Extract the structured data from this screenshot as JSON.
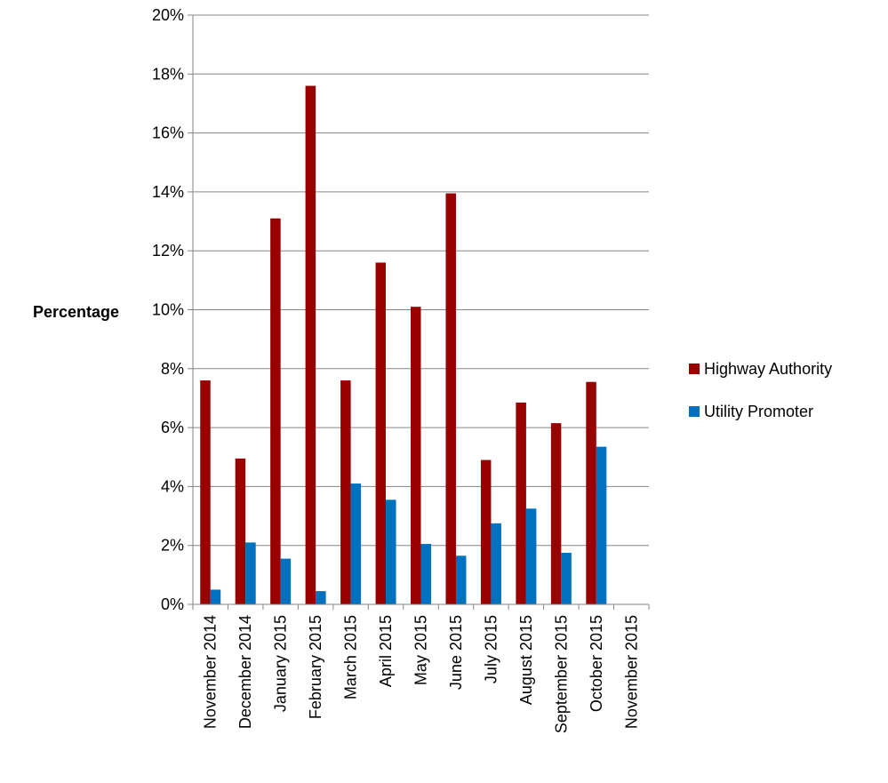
{
  "chart_data": {
    "type": "bar",
    "title": "",
    "xlabel": "",
    "ylabel": "Percentage",
    "ylim": [
      0,
      20
    ],
    "y_tick_values": [
      0,
      2,
      4,
      6,
      8,
      10,
      12,
      14,
      16,
      18,
      20
    ],
    "y_tick_labels": [
      "0%",
      "2%",
      "4%",
      "6%",
      "8%",
      "10%",
      "12%",
      "14%",
      "16%",
      "18%",
      "20%"
    ],
    "grid": true,
    "legend_position": "right",
    "categories": [
      "November 2014",
      "December 2014",
      "January 2015",
      "February 2015",
      "March 2015",
      "April 2015",
      "May 2015",
      "June 2015",
      "July 2015",
      "August 2015",
      "September 2015",
      "October 2015",
      "November 2015"
    ],
    "series": [
      {
        "name": "Highway Authority",
        "color": "#990000",
        "values": [
          7.6,
          4.95,
          13.1,
          17.6,
          7.6,
          11.6,
          10.1,
          13.95,
          4.9,
          6.85,
          6.15,
          7.55,
          null
        ]
      },
      {
        "name": "Utility Promoter",
        "color": "#0070c0",
        "values": [
          0.5,
          2.1,
          1.55,
          0.45,
          4.1,
          3.55,
          2.05,
          1.65,
          2.75,
          3.25,
          1.75,
          5.35,
          null
        ]
      }
    ]
  }
}
